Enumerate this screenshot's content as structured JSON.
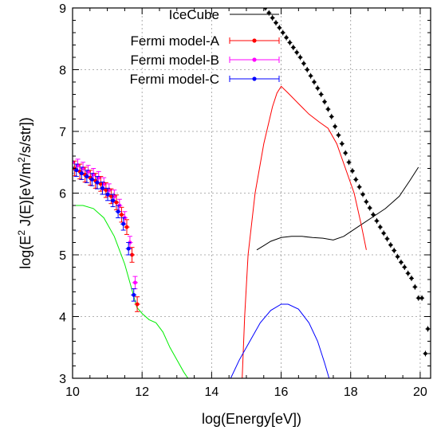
{
  "chart_data": {
    "type": "scatter",
    "xlabel": "log(Energy[eV])",
    "ylabel_parts": [
      "log(E",
      "2",
      " J(E)[eV/m",
      "2",
      "/s/str])"
    ],
    "xlim": [
      10,
      20.3
    ],
    "ylim": [
      3,
      9
    ],
    "x_ticks": [
      10,
      12,
      14,
      16,
      18,
      20
    ],
    "y_ticks": [
      3,
      4,
      5,
      6,
      7,
      8,
      9
    ],
    "grid": true,
    "legend_position": "top-center",
    "legend": [
      {
        "label": "IceCube",
        "color": "#000000",
        "kind": "line"
      },
      {
        "label": "Fermi model-A",
        "color": "#ff0000",
        "kind": "errorbar"
      },
      {
        "label": "Fermi model-B",
        "color": "#ff00ff",
        "kind": "errorbar"
      },
      {
        "label": "Fermi model-C",
        "color": "#0000ff",
        "kind": "errorbar"
      }
    ],
    "curves": [
      {
        "series": "IceCube",
        "color": "#000000",
        "points": [
          [
            15.3,
            5.08
          ],
          [
            15.5,
            5.15
          ],
          [
            15.7,
            5.22
          ],
          [
            16.0,
            5.28
          ],
          [
            16.3,
            5.3
          ],
          [
            16.6,
            5.3
          ],
          [
            16.9,
            5.28
          ],
          [
            17.2,
            5.27
          ],
          [
            17.5,
            5.24
          ],
          [
            17.8,
            5.3
          ],
          [
            18.2,
            5.45
          ],
          [
            18.6,
            5.6
          ],
          [
            19.0,
            5.75
          ],
          [
            19.4,
            5.95
          ],
          [
            19.7,
            6.2
          ],
          [
            19.95,
            6.42
          ]
        ]
      },
      {
        "series": "Fermi model-A",
        "color": "#ff0000",
        "points": [
          [
            14.88,
            3.0
          ],
          [
            14.95,
            4.0
          ],
          [
            15.05,
            5.0
          ],
          [
            15.25,
            6.0
          ],
          [
            15.5,
            6.8
          ],
          [
            15.75,
            7.4
          ],
          [
            15.88,
            7.62
          ],
          [
            16.0,
            7.73
          ],
          [
            16.2,
            7.62
          ],
          [
            16.5,
            7.45
          ],
          [
            16.8,
            7.28
          ],
          [
            17.1,
            7.15
          ],
          [
            17.35,
            7.05
          ],
          [
            17.6,
            6.8
          ],
          [
            17.85,
            6.4
          ],
          [
            18.1,
            6.0
          ],
          [
            18.3,
            5.5
          ],
          [
            18.45,
            5.08
          ]
        ]
      },
      {
        "series": "Fermi model-C",
        "color": "#0000ff",
        "points": [
          [
            14.55,
            3.0
          ],
          [
            14.8,
            3.3
          ],
          [
            15.1,
            3.6
          ],
          [
            15.4,
            3.9
          ],
          [
            15.7,
            4.1
          ],
          [
            16.0,
            4.2
          ],
          [
            16.2,
            4.2
          ],
          [
            16.5,
            4.12
          ],
          [
            16.8,
            3.9
          ],
          [
            17.05,
            3.6
          ],
          [
            17.25,
            3.25
          ],
          [
            17.38,
            3.0
          ]
        ]
      },
      {
        "series": "Fermi model-B",
        "color": "#00ee00",
        "points": [
          [
            10.0,
            5.8
          ],
          [
            10.3,
            5.8
          ],
          [
            10.6,
            5.75
          ],
          [
            10.9,
            5.6
          ],
          [
            11.2,
            5.3
          ],
          [
            11.5,
            4.85
          ],
          [
            11.7,
            4.45
          ],
          [
            11.85,
            4.15
          ],
          [
            12.0,
            4.05
          ],
          [
            12.2,
            3.95
          ],
          [
            12.4,
            3.9
          ],
          [
            12.6,
            3.75
          ],
          [
            12.8,
            3.5
          ],
          [
            13.0,
            3.3
          ],
          [
            13.2,
            3.1
          ],
          [
            13.32,
            3.0
          ]
        ]
      }
    ],
    "low_energy_points": [
      {
        "series": "Fermi model-B",
        "color": "#ff00ff",
        "dx": 0.0,
        "err": 0.1,
        "points": [
          [
            10.0,
            6.5
          ],
          [
            10.15,
            6.45
          ],
          [
            10.3,
            6.4
          ],
          [
            10.45,
            6.35
          ],
          [
            10.6,
            6.3
          ],
          [
            10.75,
            6.25
          ],
          [
            10.9,
            6.15
          ],
          [
            11.05,
            6.05
          ],
          [
            11.2,
            5.95
          ],
          [
            11.35,
            5.8
          ],
          [
            11.5,
            5.6
          ],
          [
            11.65,
            5.2
          ],
          [
            11.8,
            4.55
          ]
        ]
      },
      {
        "series": "Fermi model-A",
        "color": "#ff0000",
        "dx": 0.06,
        "err": 0.12,
        "points": [
          [
            10.0,
            6.4
          ],
          [
            10.15,
            6.35
          ],
          [
            10.3,
            6.3
          ],
          [
            10.45,
            6.25
          ],
          [
            10.6,
            6.2
          ],
          [
            10.75,
            6.15
          ],
          [
            10.9,
            6.05
          ],
          [
            11.05,
            5.95
          ],
          [
            11.2,
            5.85
          ],
          [
            11.35,
            5.65
          ],
          [
            11.5,
            5.45
          ],
          [
            11.65,
            5.0
          ],
          [
            11.8,
            4.2
          ]
        ]
      },
      {
        "series": "Fermi model-C",
        "color": "#0000ff",
        "dx": -0.04,
        "err": 0.1,
        "points": [
          [
            10.0,
            6.42
          ],
          [
            10.15,
            6.37
          ],
          [
            10.3,
            6.32
          ],
          [
            10.45,
            6.27
          ],
          [
            10.6,
            6.22
          ],
          [
            10.75,
            6.17
          ],
          [
            10.9,
            6.08
          ],
          [
            11.05,
            5.98
          ],
          [
            11.2,
            5.88
          ],
          [
            11.35,
            5.7
          ],
          [
            11.5,
            5.5
          ],
          [
            11.65,
            5.1
          ],
          [
            11.8,
            4.35
          ]
        ]
      }
    ],
    "cosmic_ray_points": {
      "color": "#000000",
      "points": [
        [
          15.55,
          9.0
        ],
        [
          15.65,
          8.92
        ],
        [
          15.75,
          8.84
        ],
        [
          15.85,
          8.76
        ],
        [
          15.95,
          8.68
        ],
        [
          16.05,
          8.6
        ],
        [
          16.15,
          8.52
        ],
        [
          16.25,
          8.44
        ],
        [
          16.35,
          8.36
        ],
        [
          16.45,
          8.28
        ],
        [
          16.55,
          8.2
        ],
        [
          16.65,
          8.1
        ],
        [
          16.75,
          8.0
        ],
        [
          16.85,
          7.9
        ],
        [
          16.95,
          7.8
        ],
        [
          17.05,
          7.7
        ],
        [
          17.15,
          7.6
        ],
        [
          17.25,
          7.48
        ],
        [
          17.35,
          7.36
        ],
        [
          17.45,
          7.24
        ],
        [
          17.55,
          7.08
        ],
        [
          17.65,
          6.94
        ],
        [
          17.75,
          6.8
        ],
        [
          17.85,
          6.65
        ],
        [
          17.95,
          6.5
        ],
        [
          18.05,
          6.36
        ],
        [
          18.15,
          6.22
        ],
        [
          18.25,
          6.1
        ],
        [
          18.35,
          5.98
        ],
        [
          18.45,
          5.86
        ],
        [
          18.55,
          5.76
        ],
        [
          18.65,
          5.65
        ],
        [
          18.75,
          5.55
        ],
        [
          18.85,
          5.45
        ],
        [
          18.95,
          5.35
        ],
        [
          19.05,
          5.26
        ],
        [
          19.15,
          5.16
        ],
        [
          19.25,
          5.07
        ],
        [
          19.35,
          4.97
        ],
        [
          19.45,
          4.88
        ],
        [
          19.55,
          4.8
        ],
        [
          19.65,
          4.7
        ],
        [
          19.75,
          4.62
        ],
        [
          19.85,
          4.48
        ],
        [
          19.95,
          4.3
        ],
        [
          20.05,
          4.3
        ],
        [
          20.15,
          3.4
        ],
        [
          20.22,
          3.8
        ]
      ]
    }
  }
}
